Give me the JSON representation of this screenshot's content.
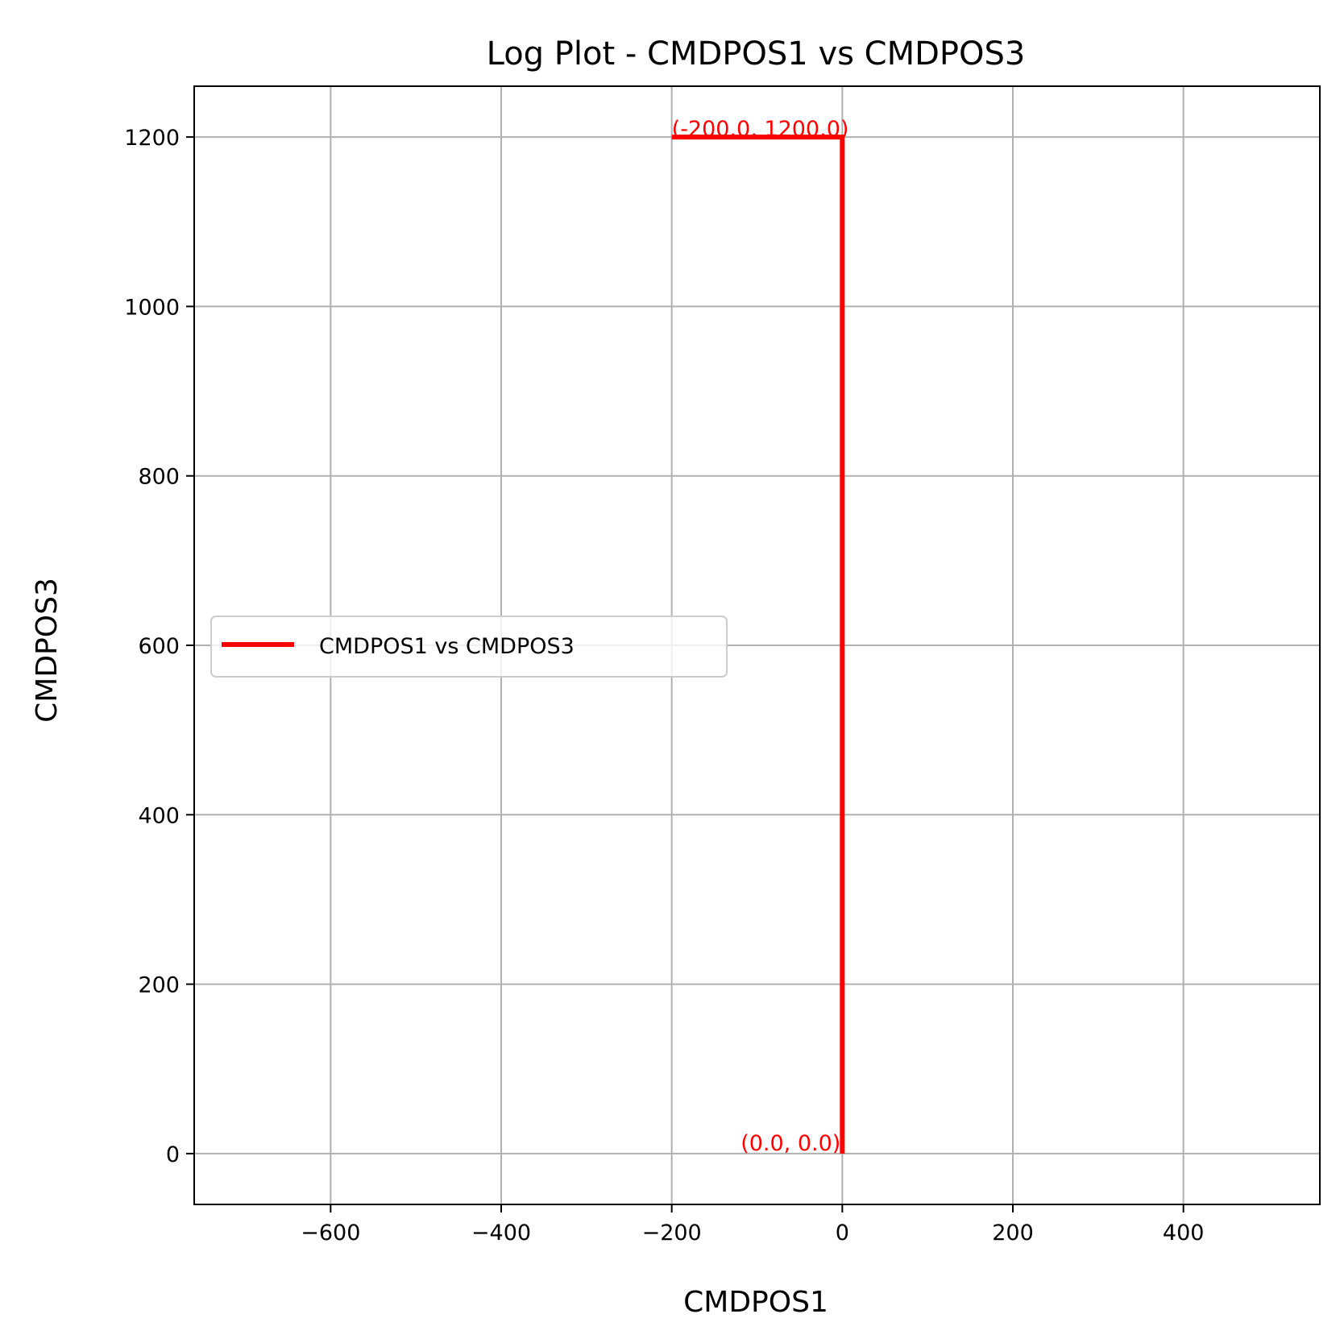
{
  "chart_data": {
    "type": "line",
    "title": "Log Plot - CMDPOS1 vs CMDPOS3",
    "xlabel": "CMDPOS1",
    "ylabel": "CMDPOS3",
    "xlim": [
      -760,
      560
    ],
    "ylim": [
      -60,
      1260
    ],
    "xticks": [
      -600,
      -400,
      -200,
      0,
      200,
      400
    ],
    "xtick_labels": [
      "−600",
      "−400",
      "−200",
      "0",
      "200",
      "400"
    ],
    "yticks": [
      0,
      200,
      400,
      600,
      800,
      1000,
      1200
    ],
    "ytick_labels": [
      "0",
      "200",
      "400",
      "600",
      "800",
      "1000",
      "1200"
    ],
    "grid": true,
    "legend_position": "center-left",
    "series": [
      {
        "name": "CMDPOS1 vs CMDPOS3",
        "color": "#ff0000",
        "x": [
          0,
          0,
          -200
        ],
        "y": [
          0,
          1200,
          1200
        ]
      }
    ],
    "annotations": [
      {
        "text": "(-200.0, 1200.0)",
        "x": -200,
        "y": 1200,
        "color": "#ff0000"
      },
      {
        "text": "(0.0, 0.0)",
        "x": 0,
        "y": 0,
        "color": "#ff0000"
      }
    ]
  }
}
